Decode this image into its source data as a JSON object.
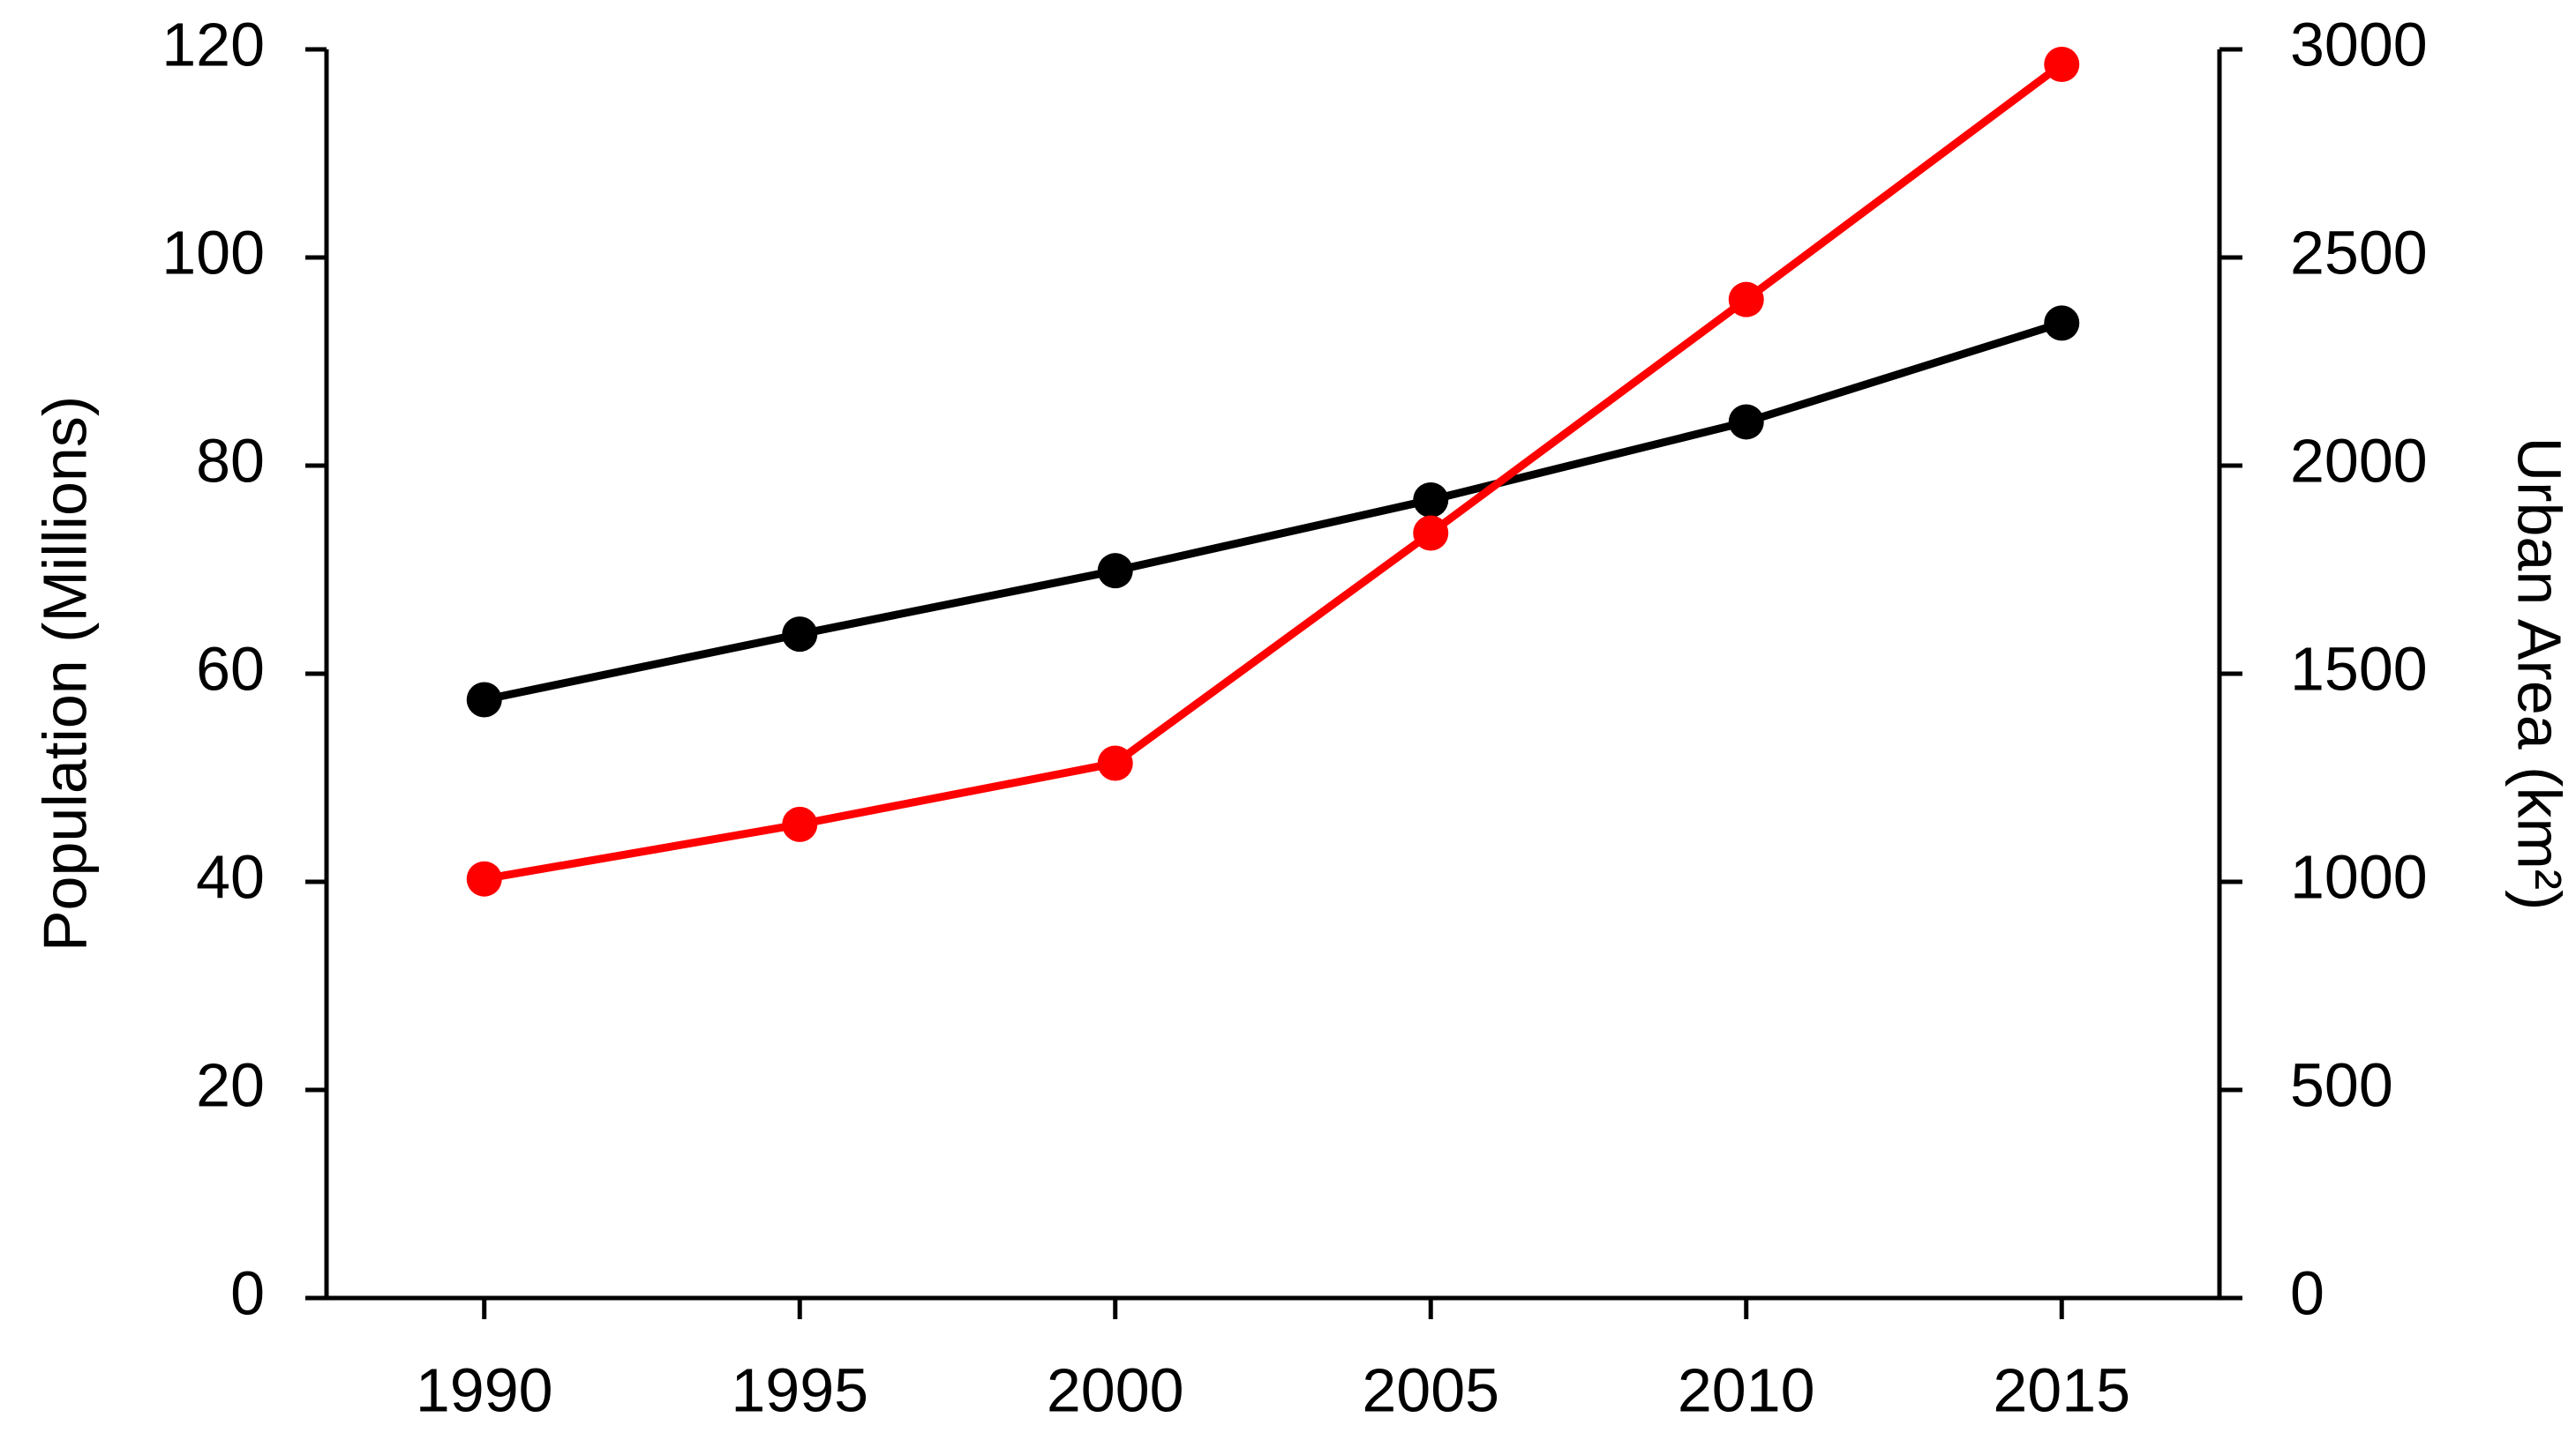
{
  "chart_data": {
    "type": "line",
    "x": [
      1990,
      1995,
      2000,
      2005,
      2010,
      2015
    ],
    "xlim": [
      1987.5,
      2017.5
    ],
    "xticks": [
      1990,
      1995,
      2000,
      2005,
      2010,
      2015
    ],
    "ylabel": "Population (Millions)",
    "ylim": [
      0,
      120
    ],
    "yticks": [
      0,
      20,
      40,
      60,
      80,
      100,
      120
    ],
    "y2label": "Urban Area (km²)",
    "y2label_color": "#ff0000",
    "y2lim": [
      0,
      3000
    ],
    "y2ticks": [
      0,
      500,
      1000,
      1500,
      2000,
      2500,
      3000
    ],
    "grid": false,
    "series": [
      {
        "name": "Population",
        "color": "#000000",
        "values": [
          57.5,
          63.8,
          69.9,
          76.7,
          84.2,
          93.7
        ]
      },
      {
        "name": "Urban Area",
        "color": "#ff0000",
        "axis": "y2",
        "values": [
          1007,
          1138,
          1285,
          1838,
          2399,
          2964
        ]
      }
    ]
  }
}
